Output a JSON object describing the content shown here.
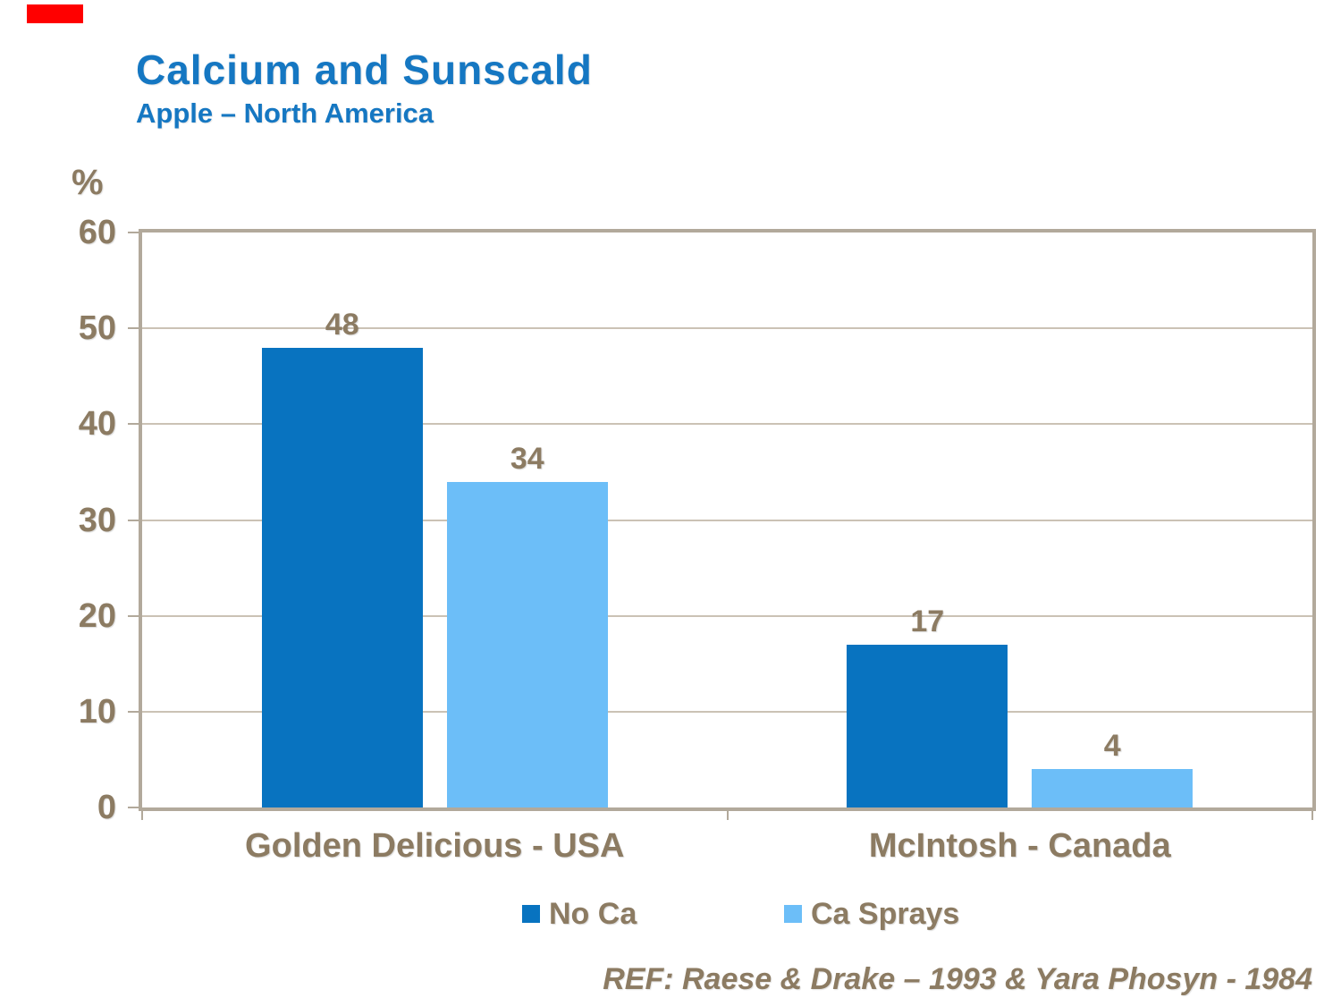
{
  "marker": {
    "color": "#ff0000"
  },
  "header": {
    "title": "Calcium and Sunscald",
    "subtitle": "Apple – North America",
    "title_color": "#1577C2"
  },
  "axis": {
    "unit_label": "%",
    "text_color": "#8C7B62",
    "border_color": "#B2A99B",
    "gridline_color": "#CBC2B5"
  },
  "chart_data": {
    "type": "bar",
    "title": "Calcium and Sunscald",
    "subtitle": "Apple – North America",
    "categories": [
      "Golden Delicious - USA",
      "McIntosh - Canada"
    ],
    "series": [
      {
        "name": "No Ca",
        "color": "#0873C0",
        "values": [
          48,
          17
        ]
      },
      {
        "name": "Ca Sprays",
        "color": "#6CBEF8",
        "values": [
          34,
          4
        ]
      }
    ],
    "xlabel": "",
    "ylabel": "%",
    "ylim": [
      0,
      60
    ],
    "yticks": [
      0,
      10,
      20,
      30,
      40,
      50,
      60
    ],
    "grid": true,
    "value_labels": true,
    "legend_position": "bottom",
    "footnote": "REF: Raese & Drake – 1993 & Yara Phosyn - 1984"
  }
}
